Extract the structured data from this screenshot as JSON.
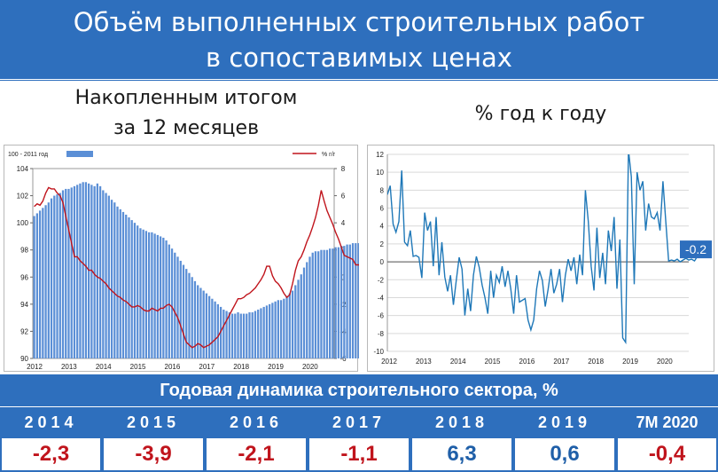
{
  "header": {
    "title_line1": "Объём выполненных строительных работ",
    "title_line2": "в сопоставимых ценах"
  },
  "left_panel": {
    "subtitle_line1": "Накопленным итогом",
    "subtitle_line2": "за 12 месяцев"
  },
  "right_panel": {
    "subtitle": "% год к году"
  },
  "colors": {
    "brand_blue": "#2e6fbd",
    "bar_blue": "#5b8fd6",
    "line_red": "#c0141c",
    "line_blue": "#1f78b8",
    "negative": "#c0141c",
    "positive": "#1f5fa8"
  },
  "chart_data": [
    {
      "type": "bar",
      "title": "",
      "xlabel": "",
      "legend": [
        {
          "name": "100 - 2011 год",
          "kind": "bar",
          "position": "top-left"
        },
        {
          "name": "%  г/г",
          "kind": "line",
          "position": "top-right"
        }
      ],
      "x_tick_labels": [
        "2012",
        "2013",
        "2014",
        "2015",
        "2016",
        "2017",
        "2018",
        "2019",
        "2020"
      ],
      "x_range": [
        2012,
        2020.75
      ],
      "y_left": {
        "range": [
          90,
          104
        ],
        "ticks": [
          90,
          92,
          94,
          96,
          98,
          100,
          102,
          104
        ]
      },
      "y_right": {
        "range": [
          -6,
          8
        ],
        "ticks": [
          -6,
          -4,
          -2,
          0,
          2,
          4,
          6,
          8
        ]
      },
      "series": [
        {
          "name": "100 - 2011 год",
          "axis": "left",
          "kind": "bar",
          "start": 2012,
          "step_months": 1,
          "values": [
            100.5,
            100.7,
            100.9,
            101.1,
            101.3,
            101.5,
            101.8,
            102.0,
            102.1,
            102.2,
            102.4,
            102.5,
            102.5,
            102.6,
            102.7,
            102.8,
            102.9,
            103.0,
            103.0,
            102.9,
            102.8,
            102.7,
            102.9,
            102.7,
            102.4,
            102.2,
            102.0,
            101.7,
            101.5,
            101.2,
            101.0,
            100.8,
            100.6,
            100.4,
            100.2,
            100.0,
            99.8,
            99.6,
            99.5,
            99.4,
            99.3,
            99.3,
            99.2,
            99.1,
            99.0,
            98.9,
            98.7,
            98.4,
            98.1,
            97.8,
            97.5,
            97.2,
            96.9,
            96.6,
            96.3,
            96.0,
            95.7,
            95.4,
            95.2,
            95.0,
            94.8,
            94.6,
            94.4,
            94.2,
            94.0,
            93.8,
            93.6,
            93.5,
            93.4,
            93.3,
            93.3,
            93.4,
            93.3,
            93.3,
            93.3,
            93.4,
            93.4,
            93.5,
            93.6,
            93.7,
            93.8,
            93.9,
            94.0,
            94.1,
            94.2,
            94.3,
            94.3,
            94.4,
            94.6,
            94.8,
            95.0,
            95.4,
            95.8,
            96.2,
            96.7,
            97.1,
            97.5,
            97.8,
            97.9,
            97.9,
            98.0,
            98.0,
            98.0,
            98.1,
            98.1,
            98.2,
            98.2,
            98.3,
            98.3,
            98.4,
            98.4,
            98.5,
            98.5,
            98.5,
            98.4,
            98.3,
            98.1,
            97.9,
            97.9,
            97.9
          ]
        },
        {
          "name": "%  г/г",
          "axis": "right",
          "kind": "line",
          "start": 2012,
          "step_months": 1,
          "values": [
            5.2,
            5.4,
            5.3,
            5.6,
            6.2,
            6.6,
            6.5,
            6.5,
            6.2,
            6.0,
            5.5,
            4.5,
            3.5,
            2.5,
            1.5,
            1.5,
            1.2,
            1.0,
            0.8,
            0.5,
            0.5,
            0.2,
            0.0,
            -0.1,
            -0.3,
            -0.5,
            -0.8,
            -1.0,
            -1.2,
            -1.4,
            -1.5,
            -1.7,
            -1.8,
            -2.0,
            -2.2,
            -2.2,
            -2.1,
            -2.2,
            -2.4,
            -2.5,
            -2.5,
            -2.3,
            -2.4,
            -2.5,
            -2.3,
            -2.3,
            -2.1,
            -2.0,
            -2.2,
            -2.6,
            -3.0,
            -3.6,
            -4.2,
            -4.8,
            -5.0,
            -5.2,
            -5.1,
            -4.9,
            -5.0,
            -5.2,
            -5.1,
            -5.0,
            -4.8,
            -4.6,
            -4.4,
            -4.0,
            -3.6,
            -3.2,
            -2.8,
            -2.4,
            -2.0,
            -1.6,
            -1.6,
            -1.5,
            -1.3,
            -1.2,
            -1.0,
            -0.8,
            -0.5,
            -0.2,
            0.2,
            0.8,
            0.8,
            0.1,
            -0.3,
            -0.5,
            -0.8,
            -1.2,
            -1.5,
            -1.3,
            -0.5,
            0.5,
            1.2,
            1.5,
            2.0,
            2.6,
            3.1,
            3.7,
            4.4,
            5.3,
            6.4,
            5.6,
            4.9,
            4.4,
            3.9,
            3.3,
            2.8,
            2.2,
            1.6,
            1.5,
            1.4,
            1.3,
            0.9,
            0.9,
            0.8,
            0.9,
            0.8,
            0.5,
            0.2,
            0.1,
            0.1,
            0.1
          ]
        }
      ]
    },
    {
      "type": "line",
      "title": "",
      "xlabel": "",
      "ylabel": "",
      "x_tick_labels": [
        "2012",
        "2013",
        "2014",
        "2015",
        "2016",
        "2017",
        "2018",
        "2019",
        "2020"
      ],
      "x_range": [
        2012,
        2020.75
      ],
      "ylim": [
        -10,
        12
      ],
      "y_ticks": [
        -10,
        -8,
        -6,
        -4,
        -2,
        0,
        2,
        4,
        6,
        8,
        10,
        12
      ],
      "grid": true,
      "annotation": {
        "text": "-0.2",
        "color": "#2e6fbd"
      },
      "series": [
        {
          "name": "",
          "start": 2012,
          "step_months": 1,
          "values": [
            7.5,
            8.5,
            4.2,
            3.3,
            4.5,
            10.2,
            2.2,
            1.8,
            3.5,
            0.6,
            0.7,
            0.5,
            -1.8,
            5.5,
            3.5,
            4.5,
            -0.5,
            5.0,
            -1.5,
            2.2,
            -1.7,
            -3.3,
            -1.5,
            -4.8,
            -2.1,
            0.5,
            -0.8,
            -6.0,
            -3.0,
            -5.5,
            -1.5,
            0.6,
            -0.6,
            -2.6,
            -4.0,
            -5.8,
            -1.0,
            -4.0,
            -1.5,
            -2.3,
            -0.5,
            -2.8,
            -1.0,
            -3.0,
            -5.8,
            -1.5,
            -4.5,
            -4.3,
            -4.1,
            -6.5,
            -7.6,
            -6.5,
            -3.0,
            -1.0,
            -2.1,
            -5.0,
            -3.1,
            -0.8,
            -3.5,
            -2.5,
            -0.8,
            -4.5,
            -1.5,
            0.3,
            -1.0,
            0.5,
            -2.5,
            0.8,
            -1.5,
            8.0,
            4.5,
            -0.5,
            -3.2,
            3.8,
            -1.8,
            1.0,
            -2.5,
            3.5,
            1.2,
            5.0,
            -3.0,
            2.5,
            -8.5,
            -9.0,
            12.5,
            9.5,
            -2.5,
            10.0,
            8.0,
            9.0,
            3.5,
            6.5,
            5.0,
            4.8,
            5.5,
            3.5,
            9.0,
            4.5,
            0.1,
            0.2,
            0.1,
            0.3,
            0.0,
            0.2,
            0.4,
            0.2,
            0.3,
            0.1,
            0.6,
            0.2,
            0.9,
            1.0,
            0.8,
            0.9,
            0.7,
            1.2,
            1.5,
            2.1,
            2.4,
            0.5
          ]
        }
      ]
    },
    {
      "type": "table",
      "title": "Годовая динамика строительного сектора, %",
      "categories": [
        "2014",
        "2015",
        "2016",
        "2017",
        "2018",
        "2019",
        "7M 2020"
      ],
      "values": [
        "-2,3",
        "-3,9",
        "-2,1",
        "-1,1",
        "6,3",
        "0,6",
        "-0,4"
      ]
    }
  ]
}
